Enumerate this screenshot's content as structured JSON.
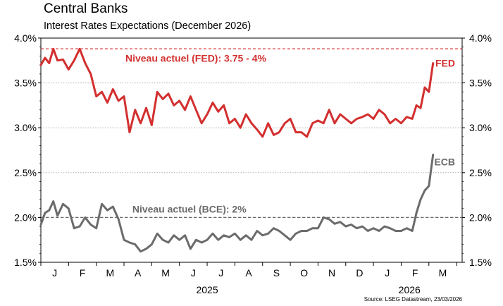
{
  "title": "Central Banks",
  "subtitle": "Interest Rates Expectations (December 2026)",
  "source": "Source: LSEG Datastream, 23/03/2026",
  "colors": {
    "fed": "#d32f2f",
    "ecb": "#6b6b6b",
    "grid": "#b0b0b0"
  },
  "chart_data": {
    "type": "line",
    "title": "Central Banks",
    "subtitle": "Interest Rates Expectations (December 2026)",
    "xlabel": "",
    "ylabel": "",
    "ylim": [
      1.5,
      4.0
    ],
    "y_ticks": [
      "4.0%",
      "3.5%",
      "3.0%",
      "2.5%",
      "2.0%",
      "1.5%"
    ],
    "y_tick_values": [
      4.0,
      3.5,
      3.0,
      2.5,
      2.0,
      1.5
    ],
    "months": [
      "J",
      "F",
      "M",
      "A",
      "M",
      "J",
      "J",
      "A",
      "S",
      "O",
      "N",
      "D",
      "J",
      "F",
      "M"
    ],
    "years": [
      "2025",
      "2026"
    ],
    "grid": true,
    "reference_lines": [
      {
        "name": "fed-current",
        "value": 3.88,
        "label": "Niveau actuel (FED): 3.75 - 4%",
        "color": "#d32f2f"
      },
      {
        "name": "ecb-current",
        "value": 2.0,
        "label": "Niveau actuel (BCE): 2%",
        "color": "#6b6b6b"
      }
    ],
    "series": [
      {
        "name": "FED",
        "color": "#d32f2f",
        "x_months": [
          0,
          0.15,
          0.3,
          0.45,
          0.6,
          0.8,
          1.0,
          1.2,
          1.4,
          1.6,
          1.8,
          2.0,
          2.2,
          2.4,
          2.6,
          2.8,
          3.0,
          3.2,
          3.4,
          3.6,
          3.8,
          4.0,
          4.2,
          4.4,
          4.6,
          4.8,
          5.0,
          5.2,
          5.4,
          5.6,
          5.8,
          6.0,
          6.2,
          6.4,
          6.6,
          6.8,
          7.0,
          7.2,
          7.4,
          7.6,
          7.8,
          8.0,
          8.2,
          8.4,
          8.6,
          8.8,
          9.0,
          9.2,
          9.4,
          9.6,
          9.8,
          10.0,
          10.2,
          10.4,
          10.6,
          10.8,
          11.0,
          11.2,
          11.4,
          11.6,
          11.8,
          12.0,
          12.2,
          12.4,
          12.6,
          12.8,
          13.0,
          13.2,
          13.4,
          13.55,
          13.7,
          13.85,
          14.0,
          14.15
        ],
        "values": [
          3.7,
          3.78,
          3.72,
          3.88,
          3.75,
          3.76,
          3.65,
          3.75,
          3.88,
          3.72,
          3.6,
          3.35,
          3.4,
          3.28,
          3.43,
          3.3,
          3.35,
          2.95,
          3.2,
          3.05,
          3.22,
          3.03,
          3.4,
          3.32,
          3.38,
          3.25,
          3.3,
          3.2,
          3.35,
          3.2,
          3.05,
          3.15,
          3.28,
          3.18,
          3.25,
          3.05,
          3.1,
          3.0,
          3.15,
          3.05,
          2.98,
          2.9,
          3.05,
          2.92,
          2.95,
          3.05,
          3.1,
          2.95,
          2.95,
          2.9,
          3.05,
          3.08,
          3.05,
          3.2,
          3.05,
          3.15,
          3.1,
          3.05,
          3.1,
          3.12,
          3.15,
          3.1,
          3.2,
          3.15,
          3.05,
          3.1,
          3.05,
          3.12,
          3.1,
          3.25,
          3.22,
          3.45,
          3.4,
          3.72
        ]
      },
      {
        "name": "ECB",
        "color": "#6b6b6b",
        "x_months": [
          0,
          0.15,
          0.3,
          0.45,
          0.6,
          0.8,
          1.0,
          1.2,
          1.4,
          1.6,
          1.8,
          2.0,
          2.2,
          2.4,
          2.6,
          2.8,
          3.0,
          3.2,
          3.4,
          3.6,
          3.8,
          4.0,
          4.2,
          4.4,
          4.6,
          4.8,
          5.0,
          5.2,
          5.4,
          5.6,
          5.8,
          6.0,
          6.2,
          6.4,
          6.6,
          6.8,
          7.0,
          7.2,
          7.4,
          7.6,
          7.8,
          8.0,
          8.2,
          8.4,
          8.6,
          8.8,
          9.0,
          9.2,
          9.4,
          9.6,
          9.8,
          10.0,
          10.2,
          10.4,
          10.6,
          10.8,
          11.0,
          11.2,
          11.4,
          11.6,
          11.8,
          12.0,
          12.2,
          12.4,
          12.6,
          12.8,
          13.0,
          13.2,
          13.4,
          13.55,
          13.7,
          13.85,
          14.0,
          14.15
        ],
        "values": [
          1.92,
          2.05,
          2.08,
          2.18,
          2.02,
          2.15,
          2.1,
          1.88,
          1.9,
          2.0,
          1.92,
          1.88,
          2.15,
          2.08,
          2.12,
          1.98,
          1.75,
          1.72,
          1.7,
          1.62,
          1.65,
          1.7,
          1.82,
          1.75,
          1.72,
          1.8,
          1.75,
          1.8,
          1.65,
          1.75,
          1.72,
          1.75,
          1.82,
          1.75,
          1.8,
          1.78,
          1.82,
          1.75,
          1.8,
          1.75,
          1.85,
          1.8,
          1.82,
          1.88,
          1.85,
          1.8,
          1.75,
          1.82,
          1.85,
          1.85,
          1.88,
          1.88,
          2.0,
          1.98,
          1.93,
          1.95,
          1.9,
          1.92,
          1.88,
          1.9,
          1.85,
          1.88,
          1.85,
          1.9,
          1.88,
          1.85,
          1.85,
          1.88,
          1.85,
          2.05,
          2.2,
          2.3,
          2.35,
          2.7
        ]
      }
    ]
  }
}
